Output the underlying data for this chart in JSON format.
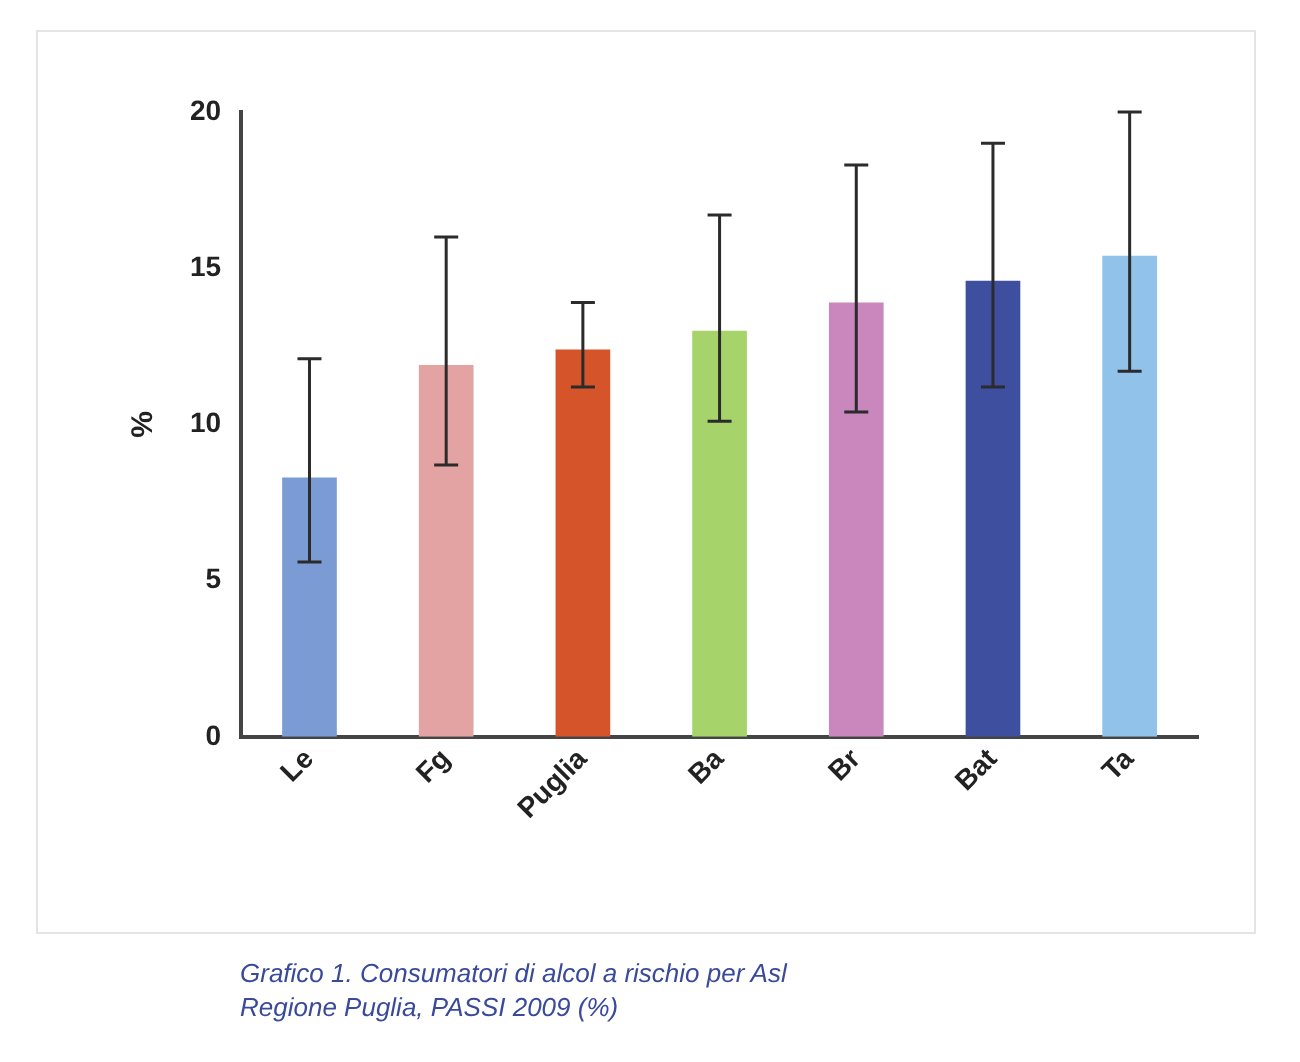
{
  "chart_data": {
    "type": "bar",
    "ylabel": "%",
    "categories": [
      "Le",
      "Fg",
      "Puglia",
      "Ba",
      "Br",
      "Bat",
      "Ta"
    ],
    "values": [
      8.3,
      11.9,
      12.4,
      13.0,
      13.9,
      14.6,
      15.4
    ],
    "colors": [
      "#7b9bd4",
      "#e3a3a3",
      "#d6542a",
      "#a6d46a",
      "#c987bd",
      "#3f4fa0",
      "#91c3ea"
    ],
    "errors": [
      [
        5.6,
        12.1
      ],
      [
        8.7,
        16.0
      ],
      [
        11.2,
        13.9
      ],
      [
        10.1,
        16.7
      ],
      [
        10.4,
        18.3
      ],
      [
        11.2,
        19.0
      ],
      [
        11.7,
        20.0
      ]
    ],
    "ylim": [
      0,
      20
    ],
    "yticks": [
      0,
      5,
      10,
      15,
      20
    ],
    "grid": false,
    "legend": false,
    "annotations": [
      "Grafico 1. Consumatori di alcol a rischio per Asl\nRegione Puglia, PASSI 2009 (%)"
    ]
  }
}
